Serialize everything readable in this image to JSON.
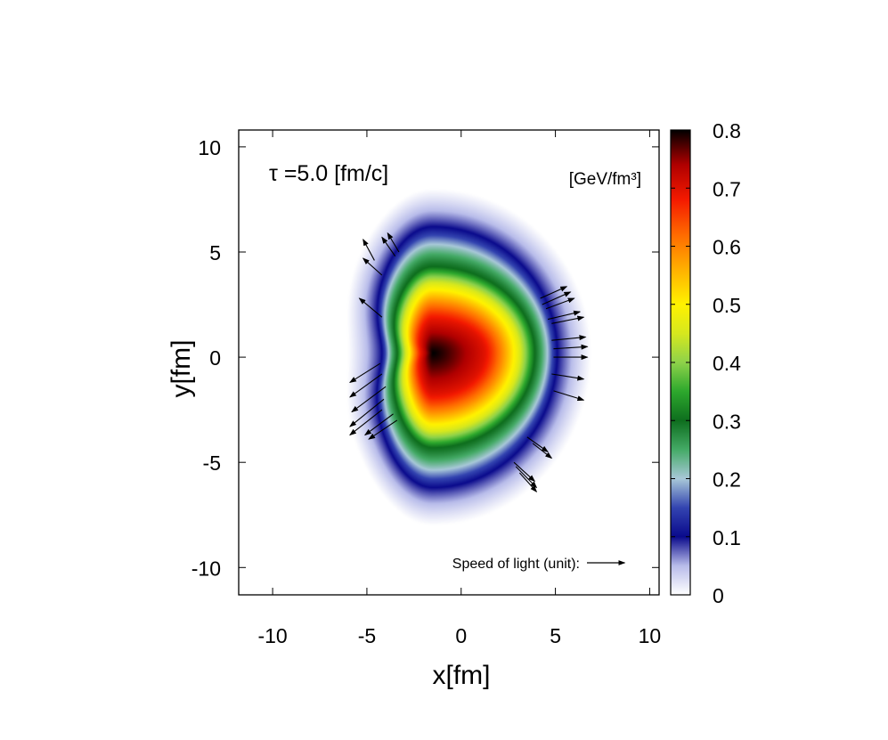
{
  "chart_data": {
    "type": "heatmap",
    "title": "τ =5.0 [fm/c]",
    "xlabel": "x[fm]",
    "ylabel": "y[fm]",
    "xlim": [
      -11.8,
      10.5
    ],
    "ylim": [
      -11.3,
      10.8
    ],
    "x_ticks": [
      -10,
      -5,
      0,
      5,
      10
    ],
    "y_ticks": [
      -10,
      -5,
      0,
      5,
      10
    ],
    "colorbar": {
      "label": "[GeV/fm³]",
      "range": [
        0,
        0.8
      ],
      "ticks": [
        0,
        0.1,
        0.2,
        0.3,
        0.4,
        0.5,
        0.6,
        0.7,
        0.8
      ],
      "tick_labels": [
        "0",
        "0.1",
        "0.2",
        "0.3",
        "0.4",
        "0.5",
        "0.6",
        "0.7",
        "0.8"
      ],
      "colormap": [
        [
          0.0,
          "#ffffff"
        ],
        [
          0.05,
          "#b8bcea"
        ],
        [
          0.1,
          "#0a0a8c"
        ],
        [
          0.15,
          "#3344b0"
        ],
        [
          0.2,
          "#a8c8d8"
        ],
        [
          0.25,
          "#44aa66"
        ],
        [
          0.3,
          "#0e6e1e"
        ],
        [
          0.35,
          "#2da82d"
        ],
        [
          0.4,
          "#8ed24a"
        ],
        [
          0.45,
          "#d6e81e"
        ],
        [
          0.5,
          "#fff200"
        ],
        [
          0.56,
          "#ffb000"
        ],
        [
          0.62,
          "#ff6a00"
        ],
        [
          0.68,
          "#f41a00"
        ],
        [
          0.74,
          "#b00000"
        ],
        [
          0.8,
          "#000000"
        ]
      ]
    },
    "field": {
      "description_shape": "energy density peaked near (-1.5, 0.2)",
      "peak_value": 0.8,
      "peak_position": [
        -1.5,
        0.2
      ],
      "contours": {
        "e_0_1": {
          "left": -4.8,
          "right": 5.1,
          "top": 6.2,
          "bottom": -6.2
        },
        "e_0_3": {
          "left": -3.8,
          "right": 3.9,
          "top": 4.3,
          "bottom": -4.3
        },
        "e_0_5": {
          "left": -3.0,
          "right": 2.8,
          "top": 3.2,
          "bottom": -3.2
        },
        "e_0_7": {
          "left": -2.2,
          "right": 1.2,
          "top": 1.7,
          "bottom": -1.7
        }
      }
    },
    "flow_arrows": {
      "reference_label": "Speed of light (unit):",
      "reference_speed": 1.0,
      "vectors": [
        {
          "x": -4.2,
          "y": 3.9,
          "vx": -0.5,
          "vy": 0.4
        },
        {
          "x": -4.6,
          "y": 4.6,
          "vx": -0.3,
          "vy": 0.5
        },
        {
          "x": -3.5,
          "y": 4.8,
          "vx": -0.35,
          "vy": 0.45
        },
        {
          "x": -3.3,
          "y": 5.0,
          "vx": -0.3,
          "vy": 0.45
        },
        {
          "x": -4.2,
          "y": 1.9,
          "vx": -0.6,
          "vy": 0.45
        },
        {
          "x": -4.3,
          "y": -0.3,
          "vx": -0.8,
          "vy": -0.45
        },
        {
          "x": -4.2,
          "y": -0.8,
          "vx": -0.85,
          "vy": -0.55
        },
        {
          "x": -4.0,
          "y": -1.4,
          "vx": -0.9,
          "vy": -0.6
        },
        {
          "x": -4.1,
          "y": -2.0,
          "vx": -0.9,
          "vy": -0.65
        },
        {
          "x": -4.2,
          "y": -2.5,
          "vx": -0.85,
          "vy": -0.6
        },
        {
          "x": -3.6,
          "y": -2.7,
          "vx": -0.75,
          "vy": -0.5
        },
        {
          "x": -3.4,
          "y": -3.0,
          "vx": -0.75,
          "vy": -0.45
        },
        {
          "x": 4.2,
          "y": 2.8,
          "vx": 0.7,
          "vy": 0.28
        },
        {
          "x": 4.3,
          "y": 2.5,
          "vx": 0.75,
          "vy": 0.3
        },
        {
          "x": 4.5,
          "y": 2.3,
          "vx": 0.75,
          "vy": 0.25
        },
        {
          "x": 4.6,
          "y": 1.8,
          "vx": 0.85,
          "vy": 0.18
        },
        {
          "x": 4.8,
          "y": 1.6,
          "vx": 0.85,
          "vy": 0.15
        },
        {
          "x": 4.8,
          "y": 0.8,
          "vx": 0.9,
          "vy": 0.08
        },
        {
          "x": 4.9,
          "y": 0.4,
          "vx": 0.9,
          "vy": 0.05
        },
        {
          "x": 4.9,
          "y": 0.0,
          "vx": 0.9,
          "vy": 0.0
        },
        {
          "x": 4.8,
          "y": -0.8,
          "vx": 0.85,
          "vy": -0.12
        },
        {
          "x": 4.9,
          "y": -1.6,
          "vx": 0.8,
          "vy": -0.22
        },
        {
          "x": 3.5,
          "y": -3.8,
          "vx": 0.55,
          "vy": -0.35
        },
        {
          "x": 3.8,
          "y": -4.1,
          "vx": 0.5,
          "vy": -0.35
        },
        {
          "x": 2.8,
          "y": -5.0,
          "vx": 0.55,
          "vy": -0.45
        },
        {
          "x": 2.9,
          "y": -5.2,
          "vx": 0.55,
          "vy": -0.5
        },
        {
          "x": 3.1,
          "y": -5.5,
          "vx": 0.45,
          "vy": -0.45
        }
      ]
    }
  }
}
